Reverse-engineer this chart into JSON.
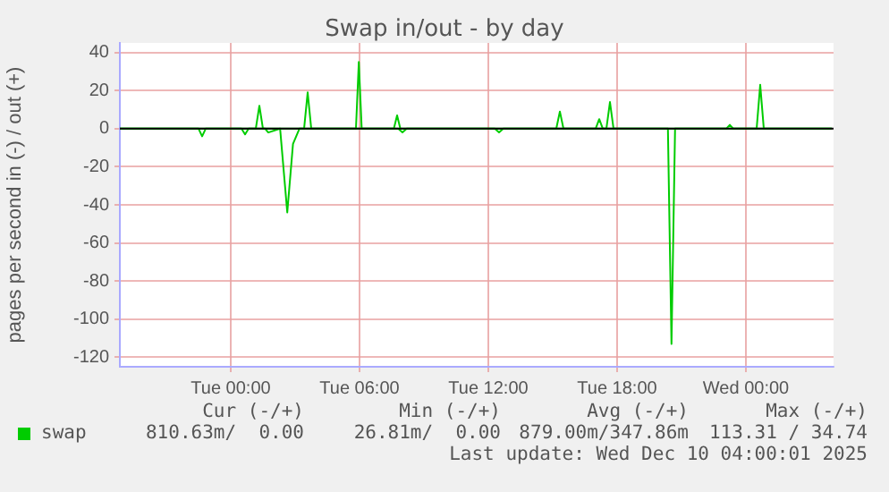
{
  "chart_data": {
    "type": "line",
    "title": "Swap in/out - by day",
    "ylabel": "pages per second in (-) / out (+)",
    "xlim": [
      "2025-12-08T18:50",
      "2025-12-10T04:05"
    ],
    "xticks": [
      {
        "value": "2025-12-09T00:00",
        "label": "Tue 00:00"
      },
      {
        "value": "2025-12-09T06:00",
        "label": "Tue 06:00"
      },
      {
        "value": "2025-12-09T12:00",
        "label": "Tue 12:00"
      },
      {
        "value": "2025-12-09T18:00",
        "label": "Tue 18:00"
      },
      {
        "value": "2025-12-10T00:00",
        "label": "Wed 00:00"
      }
    ],
    "ylim": [
      -125,
      45
    ],
    "yticks": [
      -120,
      -100,
      -80,
      -60,
      -40,
      -20,
      0,
      20,
      40
    ],
    "grid": true,
    "legend": "bottom",
    "marker": "none",
    "line_style": "solid",
    "series": [
      {
        "name": "swap",
        "color": "#00cc00",
        "x": [
          "2025-12-08T18:50",
          "2025-12-09T01:10",
          "2025-12-09T01:20",
          "2025-12-09T01:30",
          "2025-12-09T03:25",
          "2025-12-09T03:35",
          "2025-12-09T03:45",
          "2025-12-09T05:50",
          "2025-12-09T05:58",
          "2025-12-09T06:06",
          "2025-12-09T07:36",
          "2025-12-09T07:45",
          "2025-12-09T07:54",
          "2025-12-09T15:10",
          "2025-12-09T15:20",
          "2025-12-09T15:30",
          "2025-12-09T17:00",
          "2025-12-09T17:10",
          "2025-12-09T17:20",
          "2025-12-09T17:30",
          "2025-12-09T17:40",
          "2025-12-09T17:50",
          "2025-12-09T23:05",
          "2025-12-09T23:15",
          "2025-12-09T23:25",
          "2025-12-10T00:30",
          "2025-12-10T00:40",
          "2025-12-10T00:50",
          "2025-12-10T04:00"
        ],
        "values": [
          0,
          0,
          12,
          0,
          0,
          19,
          0,
          0,
          35,
          0,
          0,
          7,
          0,
          0,
          9,
          0,
          0,
          5,
          0,
          0,
          14,
          0,
          0,
          2,
          0,
          0,
          23,
          0,
          0
        ]
      },
      {
        "color": "#00cc00",
        "x": [
          "2025-12-08T18:50",
          "2025-12-08T22:30",
          "2025-12-08T22:40",
          "2025-12-08T22:50",
          "2025-12-09T00:30",
          "2025-12-09T00:40",
          "2025-12-09T00:50",
          "2025-12-09T01:36",
          "2025-12-09T01:45",
          "2025-12-09T02:18",
          "2025-12-09T02:38",
          "2025-12-09T02:54",
          "2025-12-09T03:12",
          "2025-12-09T07:48",
          "2025-12-09T08:00",
          "2025-12-09T08:12",
          "2025-12-09T12:18",
          "2025-12-09T12:30",
          "2025-12-09T12:42",
          "2025-12-09T20:22",
          "2025-12-09T20:32",
          "2025-12-09T20:42",
          "2025-12-10T04:00"
        ],
        "values": [
          0,
          0,
          -4,
          0,
          0,
          -3,
          0,
          0,
          -2,
          0,
          -44,
          -8,
          0,
          0,
          -2,
          0,
          0,
          -2,
          0,
          0,
          -113,
          0,
          0
        ]
      }
    ],
    "ref_lines": [
      {
        "axis": "y",
        "value": 0,
        "color": "#000000"
      }
    ],
    "annotations": [
      "Cur (-/+)",
      "Min (-/+)",
      "Avg (-/+)",
      "Max (-/+)",
      "810.63m/  0.00",
      "26.81m/  0.00",
      "879.00m/347.86m",
      "113.31 / 34.74",
      "Last update: Wed Dec 10 04:00:01 2025"
    ]
  }
}
